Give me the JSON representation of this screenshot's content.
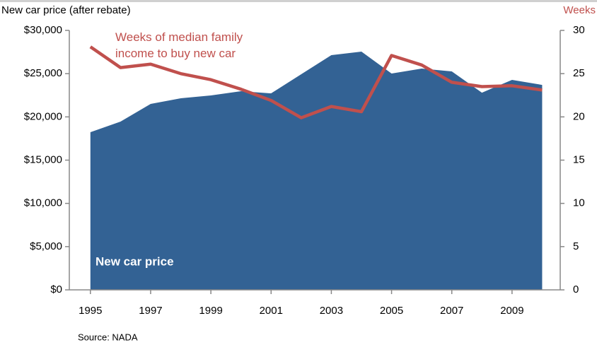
{
  "chart_data": {
    "type": "area_line",
    "y_label": "New car price (after rebate)",
    "y2_label": "Weeks",
    "source": "Source: NADA",
    "x": [
      1995,
      1996,
      1997,
      1998,
      1999,
      2000,
      2001,
      2002,
      2003,
      2004,
      2005,
      2006,
      2007,
      2008,
      2009,
      2010
    ],
    "xlim": [
      1994.3,
      2010.6
    ],
    "xticks": [
      1995,
      1997,
      1999,
      2001,
      2003,
      2005,
      2007,
      2009
    ],
    "ylim": [
      0,
      30000
    ],
    "yticks": [
      {
        "value": 0,
        "label": "$0"
      },
      {
        "value": 5000,
        "label": "$5,000"
      },
      {
        "value": 10000,
        "label": "$10,000"
      },
      {
        "value": 15000,
        "label": "$15,000"
      },
      {
        "value": 20000,
        "label": "$20,000"
      },
      {
        "value": 25000,
        "label": "$25,000"
      },
      {
        "value": 30000,
        "label": "$30,000"
      }
    ],
    "y2lim": [
      0,
      30
    ],
    "y2ticks": [
      0,
      5,
      10,
      15,
      20,
      25,
      30
    ],
    "series": [
      {
        "name": "New car price",
        "type": "area",
        "color": "#336294",
        "values": [
          18230,
          19450,
          21500,
          22150,
          22480,
          22970,
          22720,
          24930,
          27140,
          27550,
          25010,
          25590,
          25260,
          22800,
          24280,
          23700
        ]
      },
      {
        "name": "Weeks of median family income to buy new car",
        "type": "line",
        "axis": "y2",
        "color": "#c0504d",
        "values": [
          28.1,
          25.7,
          26.1,
          25.0,
          24.3,
          23.2,
          21.9,
          19.9,
          21.2,
          20.6,
          27.1,
          26.0,
          24.0,
          23.5,
          23.6,
          23.1
        ]
      }
    ]
  }
}
